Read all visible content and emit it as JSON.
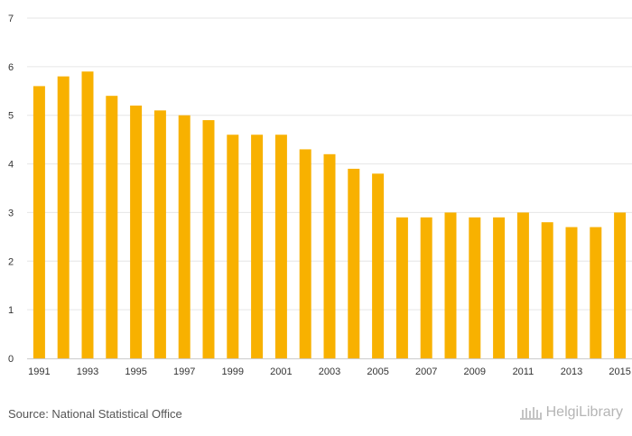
{
  "chart_data": {
    "type": "bar",
    "title": "",
    "xlabel": "",
    "ylabel": "",
    "categories": [
      "1991",
      "1992",
      "1993",
      "1994",
      "1995",
      "1996",
      "1997",
      "1998",
      "1999",
      "2000",
      "2001",
      "2002",
      "2003",
      "2004",
      "2005",
      "2006",
      "2007",
      "2008",
      "2009",
      "2010",
      "2011",
      "2012",
      "2013",
      "2014",
      "2015"
    ],
    "x_tick_labels": [
      "1991",
      "1993",
      "1995",
      "1997",
      "1999",
      "2001",
      "2003",
      "2005",
      "2007",
      "2009",
      "2011",
      "2013",
      "2015"
    ],
    "values": [
      5.6,
      5.8,
      5.9,
      5.4,
      5.2,
      5.1,
      5.0,
      4.9,
      4.6,
      4.6,
      4.6,
      4.3,
      4.2,
      3.9,
      3.8,
      2.9,
      2.9,
      3.0,
      2.9,
      2.9,
      3.0,
      2.8,
      2.7,
      2.7,
      3.0
    ],
    "ylim": [
      0,
      7
    ],
    "yticks": [
      0,
      1,
      2,
      3,
      4,
      5,
      6,
      7
    ],
    "grid": true,
    "legend": "none"
  },
  "footer": {
    "source": "Source: National Statistical Office",
    "brand": "HelgiLibrary"
  },
  "colors": {
    "bar": "#f8b100",
    "grid": "#e6e6e6",
    "axis": "#cccccc",
    "tick_text": "#333333"
  }
}
